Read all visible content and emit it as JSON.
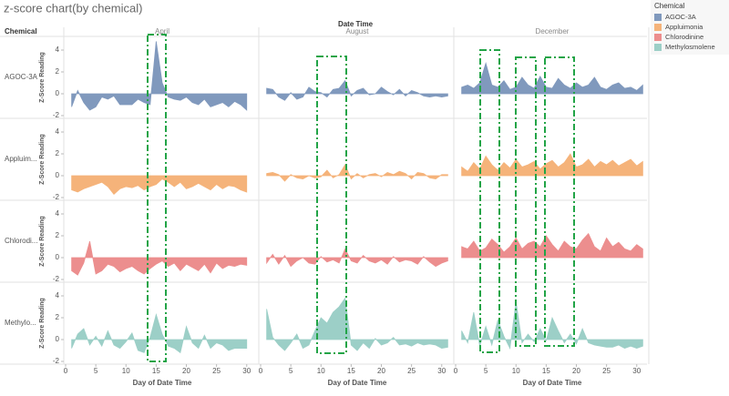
{
  "chart_data": {
    "type": "area",
    "title": "z-score chart(by chemical)",
    "column_header": "Date Time",
    "columns": [
      "April",
      "August",
      "December"
    ],
    "row_header": "Chemical",
    "rows": [
      "AGOC-3A",
      "Appluim...",
      "Chlorodi...",
      "Methylo..."
    ],
    "legend_title": "Chemical",
    "ylabel": "Z-Score Reading",
    "xlabel": "Day of Date Time",
    "xlim": [
      0,
      32
    ],
    "xticks": [
      0,
      5,
      10,
      15,
      20,
      25,
      30
    ],
    "ylim": [
      -2.25,
      5.25
    ],
    "yticks": [
      -2,
      0,
      2,
      4
    ],
    "x": [
      [
        1,
        2,
        3,
        4,
        5,
        6,
        7,
        8,
        9,
        10,
        11,
        12,
        13,
        14,
        15,
        16,
        17,
        18,
        19,
        20,
        21,
        22,
        23,
        24,
        25,
        26,
        27,
        28,
        29,
        30
      ],
      [
        1,
        2,
        3,
        4,
        5,
        6,
        7,
        8,
        9,
        10,
        11,
        12,
        13,
        14,
        15,
        16,
        17,
        18,
        19,
        20,
        21,
        22,
        23,
        24,
        25,
        26,
        27,
        28,
        29,
        30,
        31
      ],
      [
        1,
        2,
        3,
        4,
        5,
        6,
        7,
        8,
        9,
        10,
        11,
        12,
        13,
        14,
        15,
        16,
        17,
        18,
        19,
        20,
        21,
        22,
        23,
        24,
        25,
        26,
        27,
        28,
        29,
        30,
        31
      ]
    ],
    "series": [
      {
        "name": "AGOC-3A",
        "color": "#8099bd",
        "values": [
          [
            -1.2,
            0.3,
            -0.8,
            -1.5,
            -1.2,
            -0.3,
            -0.5,
            -0.2,
            -1.0,
            -1.0,
            -1.0,
            -0.5,
            -0.8,
            -1.0,
            4.8,
            1.0,
            -0.3,
            -0.5,
            -0.6,
            -0.3,
            -0.8,
            -1.0,
            -0.5,
            -1.2,
            -1.0,
            -0.8,
            -1.2,
            -0.7,
            -1.0,
            -1.5
          ],
          [
            0.5,
            0.4,
            -0.3,
            -0.6,
            0.1,
            -0.5,
            -0.3,
            0.6,
            0.2,
            0.1,
            -0.3,
            0.4,
            0.5,
            1.2,
            -0.2,
            0.3,
            0.5,
            -0.1,
            0.0,
            0.6,
            0.2,
            -0.1,
            0.4,
            -0.2,
            0.3,
            0.1,
            -0.2,
            -0.3,
            -0.2,
            -0.3,
            -0.2
          ],
          [
            0.6,
            0.8,
            0.5,
            1.0,
            2.8,
            0.8,
            0.6,
            1.2,
            0.4,
            0.6,
            1.5,
            0.8,
            0.5,
            1.6,
            0.6,
            0.5,
            1.4,
            0.8,
            0.5,
            1.0,
            0.6,
            0.8,
            1.5,
            0.6,
            0.4,
            0.8,
            1.0,
            0.5,
            0.6,
            0.3,
            0.8
          ]
        ]
      },
      {
        "name": "Appluimonia",
        "color": "#f5b37a",
        "values": [
          [
            -1.3,
            -1.5,
            -1.2,
            -1.0,
            -0.8,
            -0.6,
            -1.0,
            -1.7,
            -1.2,
            -1.0,
            -1.1,
            -0.9,
            -1.3,
            -1.0,
            -0.8,
            -0.3,
            -0.6,
            -1.0,
            -0.6,
            -1.2,
            -1.0,
            -0.7,
            -1.0,
            -1.3,
            -0.8,
            -1.2,
            -0.9,
            -1.0,
            -1.3,
            -1.5
          ],
          [
            0.2,
            0.3,
            0.1,
            -0.5,
            0.1,
            -0.2,
            -0.3,
            0.0,
            -0.2,
            -0.1,
            0.5,
            -0.2,
            0.1,
            1.0,
            -0.3,
            0.2,
            -0.2,
            0.1,
            0.2,
            -0.1,
            0.3,
            0.1,
            0.4,
            0.2,
            -0.3,
            0.3,
            0.2,
            -0.2,
            -0.3,
            0.1,
            0.1
          ],
          [
            0.8,
            0.4,
            1.2,
            0.6,
            1.8,
            1.0,
            0.5,
            1.2,
            0.7,
            1.5,
            0.8,
            1.0,
            1.3,
            0.6,
            1.1,
            1.4,
            0.8,
            1.2,
            2.0,
            0.8,
            1.0,
            1.5,
            0.8,
            1.3,
            1.0,
            1.4,
            0.9,
            1.2,
            1.5,
            0.9,
            1.3
          ]
        ]
      },
      {
        "name": "Chlorodinine",
        "color": "#ec8e8e",
        "values": [
          [
            -1.2,
            -1.6,
            -0.5,
            1.5,
            -1.5,
            -1.2,
            -0.6,
            -0.8,
            -1.3,
            -1.0,
            -0.8,
            -1.2,
            -1.5,
            -1.0,
            -0.6,
            -0.3,
            -0.8,
            -0.5,
            -1.2,
            -0.6,
            -0.9,
            -1.2,
            -0.6,
            -1.4,
            -0.5,
            -1.0,
            -0.7,
            -0.8,
            -0.6,
            -0.7
          ],
          [
            -0.5,
            0.3,
            -0.6,
            0.2,
            -0.8,
            -0.3,
            0.0,
            -0.5,
            -0.6,
            0.1,
            -0.4,
            -0.2,
            -0.5,
            0.8,
            -0.3,
            -0.5,
            0.2,
            -0.3,
            -0.5,
            -0.2,
            -0.6,
            0.1,
            -0.4,
            -0.2,
            -0.3,
            -0.6,
            0.1,
            -0.4,
            -0.8,
            -0.5,
            -0.3
          ],
          [
            1.0,
            0.8,
            1.5,
            0.6,
            0.9,
            1.7,
            1.2,
            0.5,
            1.0,
            1.8,
            0.8,
            1.3,
            1.5,
            1.0,
            2.0,
            1.2,
            0.6,
            1.5,
            1.0,
            0.8,
            1.6,
            2.2,
            1.0,
            0.6,
            1.8,
            1.0,
            1.4,
            0.8,
            0.6,
            1.2,
            0.8
          ]
        ]
      },
      {
        "name": "Methylosmolene",
        "color": "#9ccfc7",
        "values": [
          [
            -0.8,
            0.5,
            1.0,
            -0.5,
            0.3,
            -0.6,
            0.8,
            -0.5,
            -0.8,
            -0.2,
            0.6,
            -1.0,
            -1.2,
            0.2,
            2.3,
            0.5,
            -0.6,
            -0.8,
            -1.2,
            1.2,
            -0.3,
            -0.8,
            0.4,
            -0.8,
            -0.3,
            -0.5,
            -1.0,
            -0.8,
            -0.8,
            -0.8
          ],
          [
            2.8,
            0.2,
            -0.5,
            -1.0,
            -0.3,
            0.5,
            -0.8,
            -0.5,
            0.8,
            2.0,
            1.5,
            2.5,
            3.0,
            3.8,
            -0.5,
            -1.0,
            -0.3,
            -0.8,
            0.1,
            -0.5,
            -0.3,
            0.2,
            -0.5,
            -0.4,
            -0.6,
            -0.3,
            -0.5,
            -0.4,
            -0.5,
            -0.8,
            -0.7
          ],
          [
            0.8,
            -0.3,
            2.5,
            -0.6,
            1.2,
            -0.5,
            1.8,
            0.3,
            -0.8,
            3.5,
            -0.3,
            0.5,
            -0.2,
            1.0,
            -0.1,
            2.0,
            0.8,
            -0.3,
            0.5,
            -0.4,
            1.0,
            -0.3,
            -0.5,
            -0.6,
            -0.7,
            -0.7,
            -0.5,
            -0.8,
            -0.6,
            -0.8,
            -0.6
          ]
        ]
      }
    ]
  }
}
